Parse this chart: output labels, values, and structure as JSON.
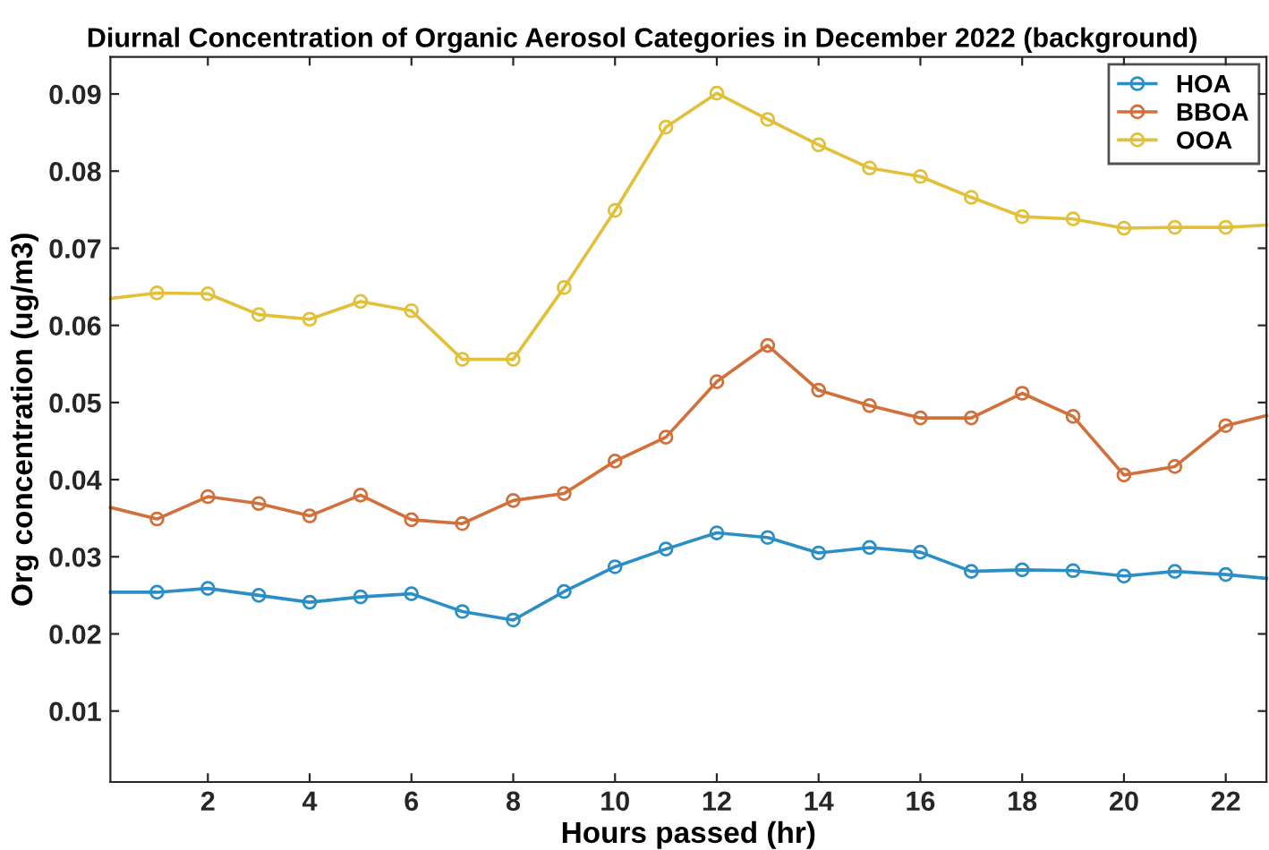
{
  "chart_data": {
    "type": "line",
    "title": "Diurnal Concentration of Organic Aerosol Categories in December 2022 (background)",
    "xlabel": "Hours passed (hr)",
    "ylabel": "Org concentration (ug/m3)",
    "x": [
      0.085,
      1,
      2,
      3,
      4,
      5,
      6,
      7,
      8,
      9,
      10,
      11,
      12,
      13,
      14,
      15,
      16,
      17,
      18,
      19,
      20,
      21,
      22,
      22.8
    ],
    "series": [
      {
        "name": "HOA",
        "color": "#2b8fc6",
        "values": [
          0.0254,
          0.0254,
          0.0259,
          0.025,
          0.0241,
          0.0248,
          0.0252,
          0.0229,
          0.0218,
          0.0255,
          0.0287,
          0.031,
          0.0331,
          0.0325,
          0.0305,
          0.0312,
          0.0306,
          0.0281,
          0.0283,
          0.0282,
          0.0275,
          0.0281,
          0.0277,
          0.0272
        ]
      },
      {
        "name": "BBOA",
        "color": "#d2703c",
        "values": [
          0.0364,
          0.0349,
          0.0378,
          0.0369,
          0.0353,
          0.038,
          0.0348,
          0.0343,
          0.0373,
          0.0382,
          0.0424,
          0.0455,
          0.0527,
          0.0574,
          0.0516,
          0.0496,
          0.048,
          0.048,
          0.0512,
          0.0482,
          0.0406,
          0.0417,
          0.047,
          0.0483
        ]
      },
      {
        "name": "OOA",
        "color": "#e2c03a",
        "values": [
          0.0635,
          0.0642,
          0.0641,
          0.0614,
          0.0608,
          0.0631,
          0.0619,
          0.0556,
          0.0556,
          0.0649,
          0.0749,
          0.0857,
          0.0901,
          0.0867,
          0.0834,
          0.0804,
          0.0793,
          0.0766,
          0.0741,
          0.0738,
          0.0726,
          0.0727,
          0.0727,
          0.073
        ]
      }
    ],
    "xlim": [
      0.085,
      22.8
    ],
    "xticks": [
      2,
      4,
      6,
      8,
      10,
      12,
      14,
      16,
      18,
      20,
      22
    ],
    "ylim": [
      0.0008,
      0.0948
    ],
    "yticks": [
      0.01,
      0.02,
      0.03,
      0.04,
      0.05,
      0.06,
      0.07,
      0.08,
      0.09
    ],
    "grid": false,
    "legend": "top right",
    "marker": "circle",
    "line_style": "solid"
  }
}
